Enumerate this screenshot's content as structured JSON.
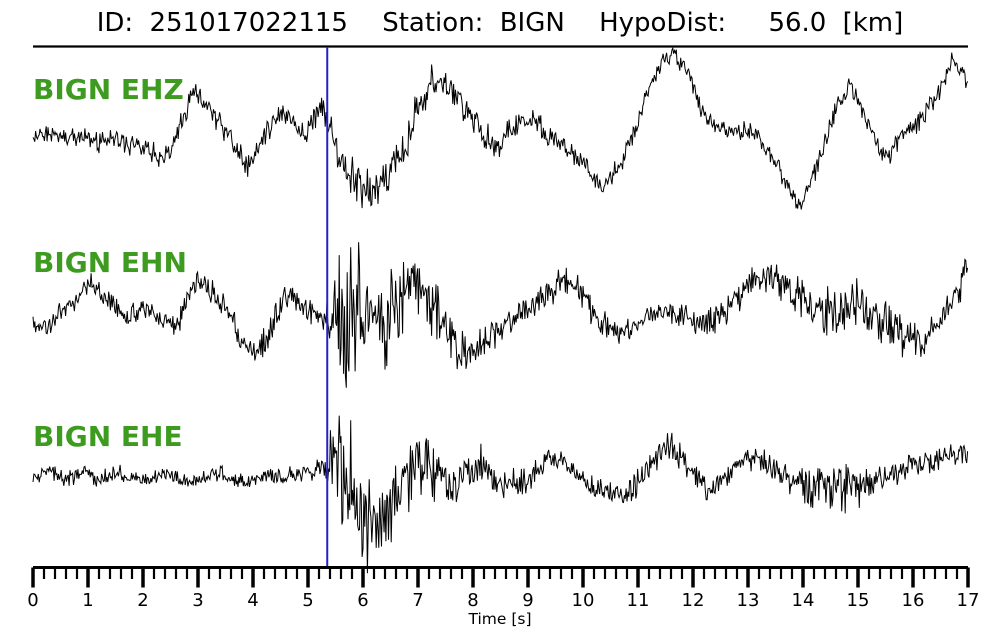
{
  "header": {
    "id_label": "ID:",
    "id_value": "251017022115",
    "station_label": "Station:",
    "station_value": "BIGN",
    "hypodist_label": "HypoDist:",
    "hypodist_value": "56.0",
    "hypodist_unit": "[km]"
  },
  "colors": {
    "background": "#ffffff",
    "trace": "#000000",
    "channel_label_green": "#3d9b20",
    "pick_line_blue": "#2222cc",
    "axis": "#000000",
    "title_text": "#000000"
  },
  "chart_data": {
    "type": "line",
    "subtype": "seismogram-3-component",
    "title": "ID: 251017022115  Station: BIGN  HypoDist: 56.0 [km]",
    "event_id": "251017022115",
    "station": "BIGN",
    "hypocentral_distance_km": 56.0,
    "xlabel": "Time [s]",
    "x_range": [
      0,
      17
    ],
    "x_major_ticks": [
      0,
      1,
      2,
      3,
      4,
      5,
      6,
      7,
      8,
      9,
      10,
      11,
      12,
      13,
      14,
      15,
      16,
      17
    ],
    "x_minor_tick_interval_s": 0.2,
    "pick_time_s": 5.35,
    "grid": false,
    "legend": "none",
    "amplitude_units": "pixels relative to trace baseline, positive = down",
    "traces": [
      {
        "label": "BIGN EHZ",
        "channel": "EHZ",
        "seed": 11,
        "lf_keypoints": [
          [
            0,
            8
          ],
          [
            0.3,
            4
          ],
          [
            0.6,
            10
          ],
          [
            0.9,
            6
          ],
          [
            1.2,
            14
          ],
          [
            1.5,
            10
          ],
          [
            1.8,
            16
          ],
          [
            2.1,
            22
          ],
          [
            2.4,
            30
          ],
          [
            2.6,
            10
          ],
          [
            2.9,
            -33
          ],
          [
            3.15,
            -25
          ],
          [
            3.5,
            5
          ],
          [
            3.9,
            38
          ],
          [
            4.2,
            10
          ],
          [
            4.5,
            -16
          ],
          [
            4.75,
            -5
          ],
          [
            4.95,
            8
          ],
          [
            5.25,
            -24
          ],
          [
            5.5,
            15
          ],
          [
            5.75,
            48
          ],
          [
            6.0,
            55
          ],
          [
            6.25,
            68
          ],
          [
            6.5,
            40
          ],
          [
            6.75,
            22
          ],
          [
            7.0,
            -25
          ],
          [
            7.3,
            -52
          ],
          [
            7.6,
            -40
          ],
          [
            7.9,
            -18
          ],
          [
            8.2,
            10
          ],
          [
            8.5,
            16
          ],
          [
            8.8,
            -5
          ],
          [
            9.1,
            -10
          ],
          [
            9.4,
            8
          ],
          [
            9.7,
            18
          ],
          [
            10.0,
            34
          ],
          [
            10.35,
            60
          ],
          [
            10.7,
            34
          ],
          [
            11.0,
            -8
          ],
          [
            11.3,
            -56
          ],
          [
            11.62,
            -78
          ],
          [
            11.9,
            -58
          ],
          [
            12.15,
            -20
          ],
          [
            12.4,
            -2
          ],
          [
            12.7,
            4
          ],
          [
            13.0,
            0
          ],
          [
            13.2,
            10
          ],
          [
            13.45,
            28
          ],
          [
            13.7,
            55
          ],
          [
            13.97,
            78
          ],
          [
            14.3,
            30
          ],
          [
            14.6,
            -20
          ],
          [
            14.85,
            -45
          ],
          [
            15.1,
            -18
          ],
          [
            15.5,
            33
          ],
          [
            15.8,
            5
          ],
          [
            16.1,
            -7
          ],
          [
            16.4,
            -30
          ],
          [
            16.73,
            -72
          ],
          [
            16.9,
            -58
          ],
          [
            17,
            -40
          ]
        ],
        "noise_env_keypoints": [
          [
            0,
            11
          ],
          [
            1.5,
            11
          ],
          [
            2.4,
            15
          ],
          [
            3.2,
            14
          ],
          [
            4.6,
            13
          ],
          [
            5.3,
            16
          ],
          [
            5.6,
            24
          ],
          [
            6.2,
            26
          ],
          [
            6.8,
            22
          ],
          [
            7.5,
            20
          ],
          [
            8.2,
            17
          ],
          [
            9,
            13
          ],
          [
            10,
            11
          ],
          [
            11,
            11
          ],
          [
            12,
            11
          ],
          [
            13,
            10
          ],
          [
            14,
            11
          ],
          [
            15,
            11
          ],
          [
            16,
            11
          ],
          [
            16.6,
            13
          ],
          [
            17,
            13
          ]
        ]
      },
      {
        "label": "BIGN EHN",
        "channel": "EHN",
        "seed": 23,
        "lf_keypoints": [
          [
            0,
            15
          ],
          [
            0.35,
            8
          ],
          [
            0.7,
            -10
          ],
          [
            1.05,
            -28
          ],
          [
            1.35,
            -14
          ],
          [
            1.7,
            6
          ],
          [
            2.0,
            -6
          ],
          [
            2.3,
            8
          ],
          [
            2.6,
            14
          ],
          [
            2.9,
            -28
          ],
          [
            3.15,
            -30
          ],
          [
            3.5,
            -5
          ],
          [
            3.8,
            28
          ],
          [
            4.05,
            44
          ],
          [
            4.35,
            16
          ],
          [
            4.6,
            -18
          ],
          [
            4.85,
            -10
          ],
          [
            5.1,
            2
          ],
          [
            5.35,
            6
          ],
          [
            5.65,
            -5
          ],
          [
            5.95,
            5
          ],
          [
            6.25,
            10
          ],
          [
            6.6,
            -16
          ],
          [
            6.9,
            -28
          ],
          [
            7.15,
            -16
          ],
          [
            7.45,
            10
          ],
          [
            7.75,
            40
          ],
          [
            8.1,
            30
          ],
          [
            8.5,
            17
          ],
          [
            9.0,
            -5
          ],
          [
            9.35,
            -22
          ],
          [
            9.6,
            -31
          ],
          [
            9.9,
            -24
          ],
          [
            10.3,
            10
          ],
          [
            10.7,
            20
          ],
          [
            11.0,
            15
          ],
          [
            11.4,
            -3
          ],
          [
            11.8,
            2
          ],
          [
            12.2,
            12
          ],
          [
            12.6,
            0
          ],
          [
            13.0,
            -25
          ],
          [
            13.4,
            -38
          ],
          [
            13.8,
            -20
          ],
          [
            14.2,
            -5
          ],
          [
            14.6,
            0
          ],
          [
            15.0,
            -8
          ],
          [
            15.4,
            8
          ],
          [
            15.8,
            22
          ],
          [
            16.1,
            32
          ],
          [
            16.45,
            12
          ],
          [
            16.75,
            -15
          ],
          [
            17,
            -48
          ]
        ],
        "noise_env_keypoints": [
          [
            0,
            13
          ],
          [
            2,
            13
          ],
          [
            3.1,
            15
          ],
          [
            4,
            14
          ],
          [
            4.55,
            22
          ],
          [
            5.0,
            13
          ],
          [
            5.3,
            14
          ],
          [
            5.45,
            35
          ],
          [
            5.7,
            85
          ],
          [
            5.95,
            95
          ],
          [
            6.15,
            75
          ],
          [
            6.4,
            60
          ],
          [
            6.7,
            48
          ],
          [
            7.0,
            40
          ],
          [
            7.35,
            30
          ],
          [
            7.8,
            24
          ],
          [
            8.4,
            18
          ],
          [
            9,
            16
          ],
          [
            9.6,
            18
          ],
          [
            10.2,
            15
          ],
          [
            11,
            14
          ],
          [
            12,
            14
          ],
          [
            12.8,
            16
          ],
          [
            13.4,
            20
          ],
          [
            14.0,
            24
          ],
          [
            14.5,
            32
          ],
          [
            15.0,
            28
          ],
          [
            15.5,
            24
          ],
          [
            16.0,
            25
          ],
          [
            16.5,
            15
          ],
          [
            17,
            22
          ]
        ]
      },
      {
        "label": "BIGN EHE",
        "channel": "EHE",
        "seed": 37,
        "lf_keypoints": [
          [
            0,
            2
          ],
          [
            0.3,
            -7
          ],
          [
            0.6,
            5
          ],
          [
            0.9,
            -3
          ],
          [
            1.2,
            4
          ],
          [
            1.5,
            -4
          ],
          [
            1.8,
            3
          ],
          [
            2.1,
            6
          ],
          [
            2.4,
            -3
          ],
          [
            2.7,
            2
          ],
          [
            3.0,
            5
          ],
          [
            3.3,
            -4
          ],
          [
            3.6,
            2
          ],
          [
            3.9,
            6
          ],
          [
            4.2,
            -2
          ],
          [
            4.5,
            3
          ],
          [
            4.8,
            -4
          ],
          [
            5.1,
            -2
          ],
          [
            5.35,
            -12
          ],
          [
            5.55,
            -25
          ],
          [
            5.72,
            8
          ],
          [
            5.9,
            42
          ],
          [
            6.1,
            52
          ],
          [
            6.35,
            40
          ],
          [
            6.6,
            22
          ],
          [
            6.9,
            -8
          ],
          [
            7.15,
            -15
          ],
          [
            7.4,
            4
          ],
          [
            7.65,
            12
          ],
          [
            7.9,
            -6
          ],
          [
            8.15,
            -12
          ],
          [
            8.45,
            6
          ],
          [
            8.7,
            10
          ],
          [
            9.0,
            2
          ],
          [
            9.35,
            -16
          ],
          [
            9.7,
            -12
          ],
          [
            10.1,
            8
          ],
          [
            10.5,
            19
          ],
          [
            10.9,
            14
          ],
          [
            11.2,
            -8
          ],
          [
            11.58,
            -33
          ],
          [
            11.9,
            -12
          ],
          [
            12.25,
            14
          ],
          [
            12.6,
            5
          ],
          [
            12.85,
            -12
          ],
          [
            13.1,
            -21
          ],
          [
            13.45,
            -8
          ],
          [
            13.8,
            8
          ],
          [
            14.2,
            12
          ],
          [
            14.6,
            15
          ],
          [
            15.0,
            10
          ],
          [
            15.3,
            5
          ],
          [
            15.6,
            -2
          ],
          [
            16.0,
            -10
          ],
          [
            16.3,
            -16
          ],
          [
            16.6,
            -21
          ],
          [
            16.85,
            -23
          ],
          [
            17,
            -22
          ]
        ],
        "noise_env_keypoints": [
          [
            0,
            9
          ],
          [
            2,
            9
          ],
          [
            3,
            9
          ],
          [
            4,
            9
          ],
          [
            5.0,
            10
          ],
          [
            5.3,
            14
          ],
          [
            5.5,
            60
          ],
          [
            5.75,
            75
          ],
          [
            6.0,
            65
          ],
          [
            6.3,
            55
          ],
          [
            6.6,
            45
          ],
          [
            6.95,
            35
          ],
          [
            7.4,
            28
          ],
          [
            8.0,
            22
          ],
          [
            8.6,
            18
          ],
          [
            9.2,
            16
          ],
          [
            10,
            14
          ],
          [
            10.8,
            15
          ],
          [
            11.3,
            18
          ],
          [
            11.6,
            20
          ],
          [
            12.2,
            13
          ],
          [
            13,
            16
          ],
          [
            13.5,
            14
          ],
          [
            14.1,
            20
          ],
          [
            14.7,
            28
          ],
          [
            15.2,
            22
          ],
          [
            15.7,
            16
          ],
          [
            16.2,
            15
          ],
          [
            16.6,
            17
          ],
          [
            17,
            18
          ]
        ]
      }
    ]
  }
}
